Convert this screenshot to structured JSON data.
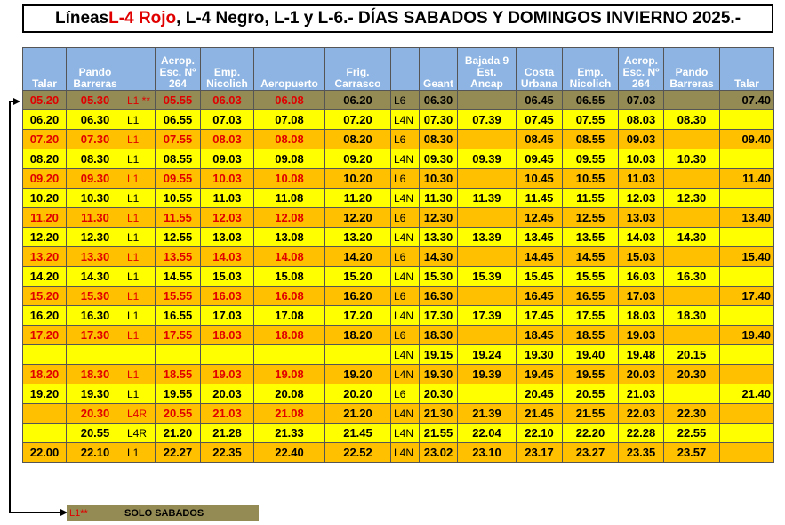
{
  "title": {
    "prefix": "Líneas ",
    "highlight": "L-4 Rojo",
    "rest": ",  L-4 Negro, L-1 y L-6.- DÍAS SABADOS Y DOMINGOS  INVIERNO 2025.-"
  },
  "headers": [
    "Talar",
    "Pando Barreras",
    "",
    "Aerop. Esc. Nº 264",
    "Emp. Nicolich",
    "Aeropuerto",
    "Frig. Carrasco",
    "",
    "Geant",
    "Bajada 9 Est. Ancap",
    "Costa Urbana",
    "Emp. Nicolich",
    "Aerop. Esc. Nº 264",
    "Pando Barreras",
    "Talar"
  ],
  "rows": [
    {
      "color": "olive",
      "red": true,
      "cells": [
        "05.20",
        "05.30",
        "L1 **",
        "05.55",
        "06.03",
        "06.08",
        "06.20",
        "L6",
        "06.30",
        "",
        "06.45",
        "06.55",
        "07.03",
        "",
        "07.40"
      ]
    },
    {
      "color": "yellow",
      "red": false,
      "cells": [
        "06.20",
        "06.30",
        "L1",
        "06.55",
        "07.03",
        "07.08",
        "07.20",
        "L4N",
        "07.30",
        "07.39",
        "07.45",
        "07.55",
        "08.03",
        "08.30",
        ""
      ]
    },
    {
      "color": "orange",
      "red": true,
      "cells": [
        "07.20",
        "07.30",
        "L1",
        "07.55",
        "08.03",
        "08.08",
        "08.20",
        "L6",
        "08.30",
        "",
        "08.45",
        "08.55",
        "09.03",
        "",
        "09.40"
      ]
    },
    {
      "color": "yellow",
      "red": false,
      "cells": [
        "08.20",
        "08.30",
        "L1",
        "08.55",
        "09.03",
        "09.08",
        "09.20",
        "L4N",
        "09.30",
        "09.39",
        "09.45",
        "09.55",
        "10.03",
        "10.30",
        ""
      ]
    },
    {
      "color": "orange",
      "red": true,
      "cells": [
        "09.20",
        "09.30",
        "L1",
        "09.55",
        "10.03",
        "10.08",
        "10.20",
        "L6",
        "10.30",
        "",
        "10.45",
        "10.55",
        "11.03",
        "",
        "11.40"
      ]
    },
    {
      "color": "yellow",
      "red": false,
      "cells": [
        "10.20",
        "10.30",
        "L1",
        "10.55",
        "11.03",
        "11.08",
        "11.20",
        "L4N",
        "11.30",
        "11.39",
        "11.45",
        "11.55",
        "12.03",
        "12.30",
        ""
      ]
    },
    {
      "color": "orange",
      "red": true,
      "cells": [
        "11.20",
        "11.30",
        "L1",
        "11.55",
        "12.03",
        "12.08",
        "12.20",
        "L6",
        "12.30",
        "",
        "12.45",
        "12.55",
        "13.03",
        "",
        "13.40"
      ]
    },
    {
      "color": "yellow",
      "red": false,
      "cells": [
        "12.20",
        "12.30",
        "L1",
        "12.55",
        "13.03",
        "13.08",
        "13.20",
        "L4N",
        "13.30",
        "13.39",
        "13.45",
        "13.55",
        "14.03",
        "14.30",
        ""
      ]
    },
    {
      "color": "orange",
      "red": true,
      "cells": [
        "13.20",
        "13.30",
        "L1",
        "13.55",
        "14.03",
        "14.08",
        "14.20",
        "L6",
        "14.30",
        "",
        "14.45",
        "14.55",
        "15.03",
        "",
        "15.40"
      ]
    },
    {
      "color": "yellow",
      "red": false,
      "cells": [
        "14.20",
        "14.30",
        "L1",
        "14.55",
        "15.03",
        "15.08",
        "15.20",
        "L4N",
        "15.30",
        "15.39",
        "15.45",
        "15.55",
        "16.03",
        "16.30",
        ""
      ]
    },
    {
      "color": "orange",
      "red": true,
      "cells": [
        "15.20",
        "15.30",
        "L1",
        "15.55",
        "16.03",
        "16.08",
        "16.20",
        "L6",
        "16.30",
        "",
        "16.45",
        "16.55",
        "17.03",
        "",
        "17.40"
      ]
    },
    {
      "color": "yellow",
      "red": false,
      "cells": [
        "16.20",
        "16.30",
        "L1",
        "16.55",
        "17.03",
        "17.08",
        "17.20",
        "L4N",
        "17.30",
        "17.39",
        "17.45",
        "17.55",
        "18.03",
        "18.30",
        ""
      ]
    },
    {
      "color": "orange",
      "red": true,
      "cells": [
        "17.20",
        "17.30",
        "L1",
        "17.55",
        "18.03",
        "18.08",
        "18.20",
        "L6",
        "18.30",
        "",
        "18.45",
        "18.55",
        "19.03",
        "",
        "19.40"
      ]
    },
    {
      "color": "yellow",
      "red": false,
      "cells": [
        "",
        "",
        "",
        "",
        "",
        "",
        "",
        "L4N",
        "19.15",
        "19.24",
        "19.30",
        "19.40",
        "19.48",
        "20.15",
        ""
      ]
    },
    {
      "color": "orange",
      "red": true,
      "cells": [
        "18.20",
        "18.30",
        "L1",
        "18.55",
        "19.03",
        "19.08",
        "19.20",
        "L4N",
        "19.30",
        "19.39",
        "19.45",
        "19.55",
        "20.03",
        "20.30",
        ""
      ]
    },
    {
      "color": "yellow",
      "red": false,
      "cells": [
        "19.20",
        "19.30",
        "L1",
        "19.55",
        "20.03",
        "20.08",
        "20.20",
        "L6",
        "20.30",
        "",
        "20.45",
        "20.55",
        "21.03",
        "",
        "21.40"
      ]
    },
    {
      "color": "orange",
      "red": true,
      "cells": [
        "",
        "20.30",
        "L4R",
        "20.55",
        "21.03",
        "21.08",
        "21.20",
        "L4N",
        "21.30",
        "21.39",
        "21.45",
        "21.55",
        "22.03",
        "22.30",
        ""
      ]
    },
    {
      "color": "yellow",
      "red": false,
      "cells": [
        "",
        "20.55",
        "L4R",
        "21.20",
        "21.28",
        "21.33",
        "21.45",
        "L4N",
        "21.55",
        "22.04",
        "22.10",
        "22.20",
        "22.28",
        "22.55",
        ""
      ]
    },
    {
      "color": "orange",
      "red": false,
      "cells": [
        "22.00",
        "22.10",
        "L1",
        "22.27",
        "22.35",
        "22.40",
        "22.52",
        "L4N",
        "23.02",
        "23.10",
        "23.17",
        "23.27",
        "23.35",
        "23.57",
        ""
      ]
    }
  ],
  "legend": {
    "code": "L1**",
    "text": "SOLO SABADOS"
  },
  "colors": {
    "header": "#8db4e2",
    "yellow": "#ffff00",
    "orange": "#ffc000",
    "olive": "#948a54",
    "red": "#e00000"
  }
}
